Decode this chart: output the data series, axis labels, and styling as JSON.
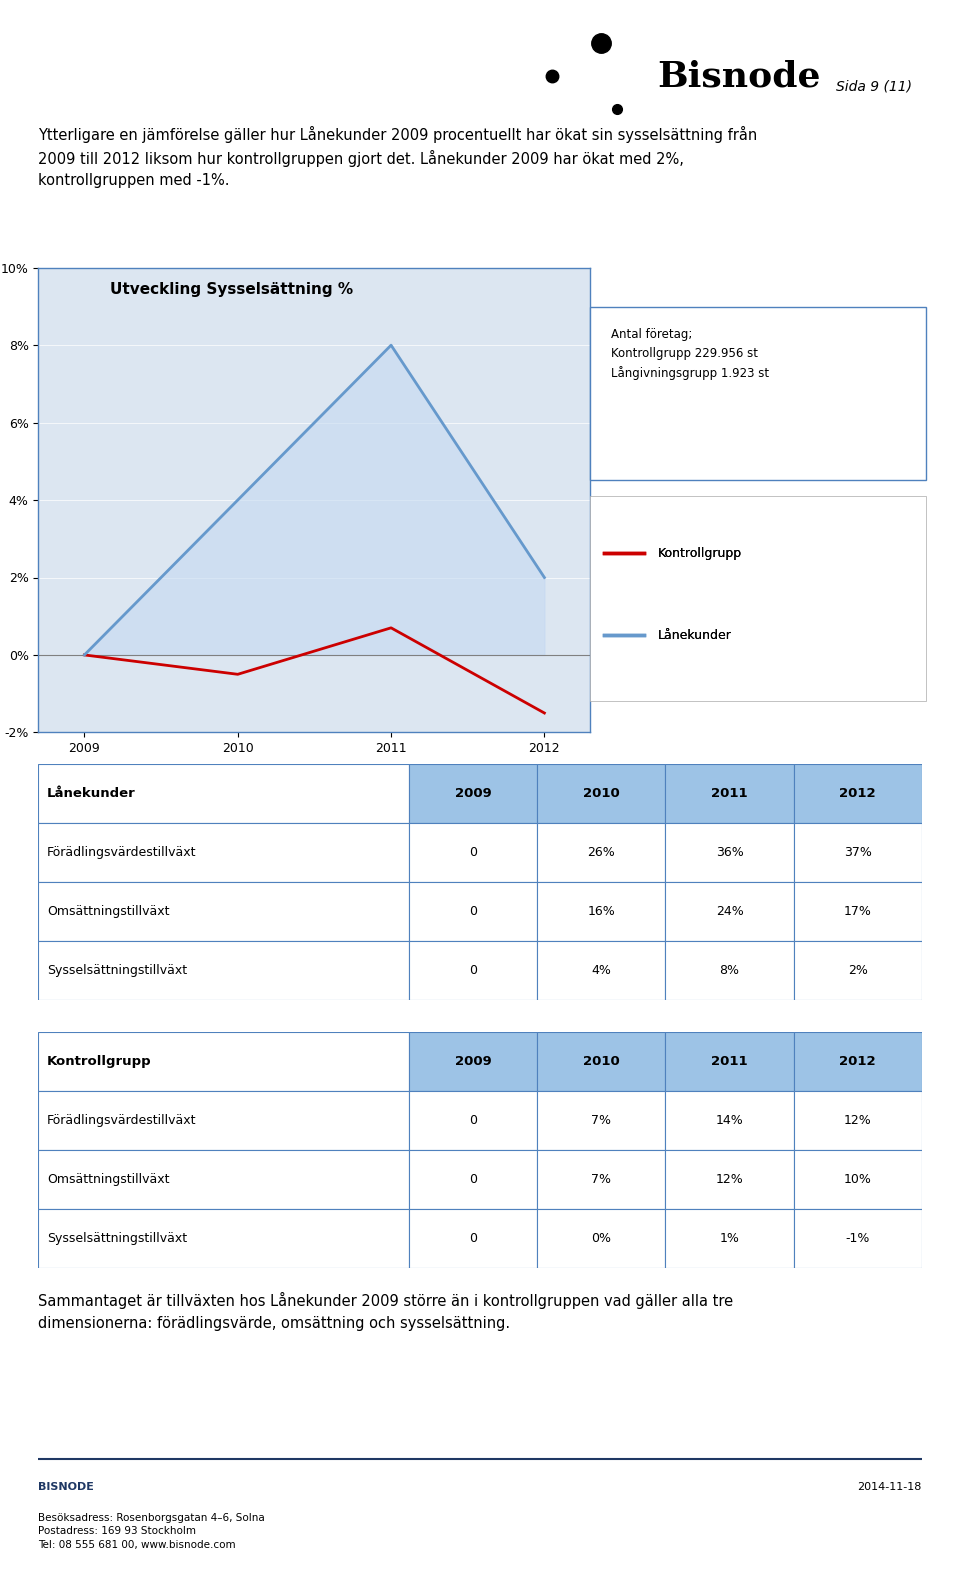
{
  "page_label": "Sida 9 (11)",
  "logo_text": "Bisnode",
  "intro_text": "Ytterligare en jämförelse gäller hur Lånekunder 2009 procentuellt har ökat sin sysselsättning från\n2009 till 2012 liksom hur kontrollgruppen gjort det. Lånekunder 2009 har ökat med 2%,\nkontrollgruppen med -1%.",
  "chart_title": "Utveckling Sysselsättning %",
  "chart_annotation": "Antal företag;\nKontrollgrupp 229.956 st\nLångivningsgrupp 1.923 st",
  "years": [
    2009,
    2010,
    2011,
    2012
  ],
  "kontrollgrupp_values": [
    0,
    -0.005,
    0.007,
    -0.015
  ],
  "lanekunder_values": [
    0,
    0.04,
    0.08,
    0.02
  ],
  "kontrollgrupp_color": "#cc0000",
  "lanekunder_color": "#6699cc",
  "lanekunder_fill_color": "#c5d9f1",
  "chart_bg_color": "#dce6f1",
  "chart_border_color": "#4f81bd",
  "ylim_min": -0.02,
  "ylim_max": 0.1,
  "yticks": [
    -0.02,
    0.0,
    0.02,
    0.04,
    0.06,
    0.08,
    0.1
  ],
  "ytick_labels": [
    "-2%",
    "0%",
    "2%",
    "4%",
    "6%",
    "8%",
    "10%"
  ],
  "table1_header": "Lånekunder",
  "table1_header_color": "#4f81bd",
  "table1_rows": [
    [
      "Förädlingsvärdestillväxt",
      "0",
      "26%",
      "36%",
      "37%"
    ],
    [
      "Omsättningstillväxt",
      "0",
      "16%",
      "24%",
      "17%"
    ],
    [
      "Sysselsättningstillväxt",
      "0",
      "4%",
      "8%",
      "2%"
    ]
  ],
  "table2_header": "Kontrollgrupp",
  "table2_header_color": "#4f81bd",
  "table2_rows": [
    [
      "Förädlingsvärdestillväxt",
      "0",
      "7%",
      "14%",
      "12%"
    ],
    [
      "Omsättningstillväxt",
      "0",
      "7%",
      "12%",
      "10%"
    ],
    [
      "Sysselsättningstillväxt",
      "0",
      "0%",
      "1%",
      "-1%"
    ]
  ],
  "col_headers": [
    "2009",
    "2010",
    "2011",
    "2012"
  ],
  "footer_text": "Sammantaget är tillväxten hos Lånekunder 2009 större än i kontrollgruppen vad gäller alla tre\ndimensionerna: förädlingsvärde, omsättning och sysselsättning.",
  "bisnode_footer_left": "BISNODE\nBesöksadress: Rosenborgsgatan 4–6, Solna\nPostadress: 169 93 Stockholm\nTel: 08 555 681 00, www.bisnode.com",
  "bisnode_footer_right": "2014-11-18",
  "bisnode_color": "#1f3864",
  "page_bg": "#ffffff"
}
